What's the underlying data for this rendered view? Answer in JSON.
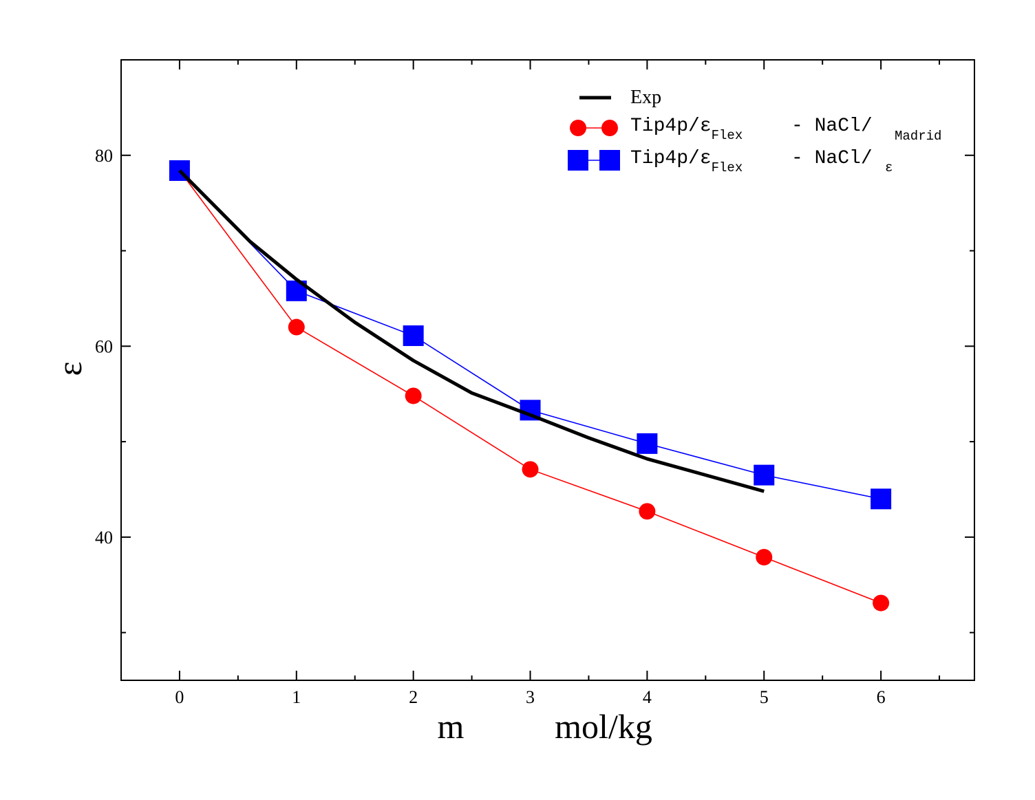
{
  "chart_data": {
    "type": "line",
    "xlabel": "m",
    "xunit": "mol/kg",
    "ylabel": "ε",
    "xlim": [
      -0.5,
      6.8
    ],
    "ylim": [
      25,
      90
    ],
    "x_ticks": [
      0,
      1,
      2,
      3,
      4,
      5,
      6
    ],
    "y_ticks": [
      40,
      60,
      80
    ],
    "grid": false,
    "legend_position": "top-right",
    "series": [
      {
        "name": "Exp",
        "style": "thick-line",
        "color": "#000000",
        "x": [
          0,
          0.6,
          1.0,
          1.5,
          2.0,
          2.5,
          3.0,
          3.5,
          4.0,
          4.5,
          5.0
        ],
        "y": [
          78.4,
          71.0,
          67.0,
          62.5,
          58.5,
          55.1,
          52.8,
          50.4,
          48.2,
          46.5,
          44.8
        ]
      },
      {
        "name": "Tip4p/εFlex - NaCl/ Madrid",
        "style": "circle",
        "color": "#ff0000",
        "x": [
          0,
          1,
          2,
          3,
          4,
          5,
          6
        ],
        "y": [
          78.4,
          62.0,
          54.8,
          47.1,
          42.7,
          37.9,
          33.1
        ]
      },
      {
        "name": "Tip4p/εFlex - NaCl/ε",
        "style": "square",
        "color": "#0000ff",
        "x": [
          0,
          1,
          2,
          3,
          4,
          5,
          6
        ],
        "y": [
          78.4,
          65.8,
          61.1,
          53.3,
          49.8,
          46.5,
          44.0
        ]
      }
    ]
  },
  "legend": {
    "exp_label": "Exp",
    "madrid_main": "Tip4p/ε",
    "madrid_sub1": "Flex",
    "madrid_mid": "- NaCl/",
    "madrid_sub2": "Madrid",
    "eps_main": "Tip4p/ε",
    "eps_sub1": "Flex",
    "eps_mid": "- NaCl/",
    "eps_sub2": "ε"
  }
}
